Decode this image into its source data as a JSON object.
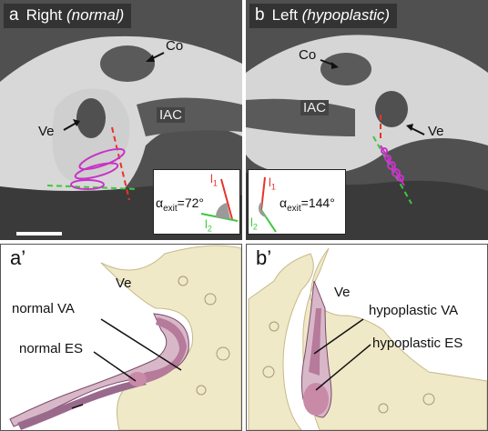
{
  "panels": {
    "a": {
      "letter": "a",
      "side": "Right",
      "note": "(normal)",
      "co": "Co",
      "iac": "IAC",
      "ve": "Ve",
      "alpha": "α",
      "exit_sub": "exit",
      "angle": "=72°",
      "l1": "l",
      "l1_sub": "1",
      "l2": "l",
      "l2_sub": "2"
    },
    "b": {
      "letter": "b",
      "side": "Left",
      "note": "(hypoplastic)",
      "co": "Co",
      "iac": "IAC",
      "ve": "Ve",
      "alpha": "α",
      "exit_sub": "exit",
      "angle": "=144°",
      "l1": "l",
      "l1_sub": "1",
      "l2": "l",
      "l2_sub": "2"
    },
    "a_prime": {
      "letter": "a’",
      "ve": "Ve",
      "va": "normal VA",
      "es": "normal ES"
    },
    "b_prime": {
      "letter": "b’",
      "ve": "Ve",
      "va": "hypoplastic VA",
      "es": "hypoplastic ES"
    }
  },
  "colors": {
    "l1_line": "#e8322a",
    "l2_line": "#3cc83c",
    "overlay": "#c832c8",
    "bone": "#efe9c8",
    "tissue": "#c98aa8"
  }
}
